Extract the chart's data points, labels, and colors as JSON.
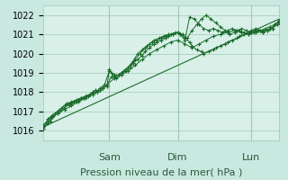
{
  "title": "",
  "xlabel": "Pression niveau de la mer( hPa )",
  "ylabel": "",
  "bg_color": "#c8e8e0",
  "plot_bg_color": "#d8f0e8",
  "grid_color": "#a0c8b8",
  "line_color": "#1a6b2a",
  "marker_color": "#1a6b2a",
  "ylim": [
    1015.5,
    1022.5
  ],
  "yticks": [
    1016,
    1017,
    1018,
    1019,
    1020,
    1021,
    1022
  ],
  "day_labels": [
    "Sam",
    "Dim",
    "Lun"
  ],
  "day_positions": [
    0.28,
    0.57,
    0.88
  ],
  "xlabel_fontsize": 8,
  "tick_fontsize": 7,
  "day_fontsize": 8,
  "series": [
    {
      "x": [
        0.0,
        0.01,
        0.02,
        0.03,
        0.05,
        0.06,
        0.07,
        0.08,
        0.09,
        0.1,
        0.11,
        0.12,
        0.14,
        0.15,
        0.16,
        0.17,
        0.18,
        0.2,
        0.21,
        0.22,
        0.23,
        0.24,
        0.25,
        0.27,
        0.28,
        0.29,
        0.3,
        0.32,
        0.33,
        0.35,
        0.37,
        0.38,
        0.4,
        0.42,
        0.43,
        0.45,
        0.47,
        0.48,
        0.5,
        0.52,
        0.53,
        0.55,
        0.57,
        0.58,
        0.6,
        0.62,
        0.63,
        0.65,
        0.67,
        0.68,
        0.7,
        0.72,
        0.73,
        0.75,
        0.77,
        0.78,
        0.8,
        0.82,
        0.83,
        0.85,
        0.87,
        0.88,
        0.9,
        0.92,
        0.93,
        0.95,
        0.97,
        0.98,
        1.0
      ],
      "y": [
        1016.2,
        1016.4,
        1016.6,
        1016.7,
        1016.9,
        1017.0,
        1017.1,
        1017.2,
        1017.3,
        1017.4,
        1017.3,
        1017.4,
        1017.5,
        1017.6,
        1017.7,
        1017.7,
        1017.8,
        1017.9,
        1018.0,
        1018.1,
        1018.0,
        1018.1,
        1018.2,
        1018.3,
        1019.2,
        1019.0,
        1018.8,
        1018.9,
        1019.0,
        1019.1,
        1019.3,
        1019.5,
        1019.7,
        1019.9,
        1020.1,
        1020.3,
        1020.5,
        1020.6,
        1020.7,
        1020.8,
        1020.9,
        1021.0,
        1021.1,
        1021.0,
        1020.8,
        1020.6,
        1020.4,
        1020.2,
        1020.1,
        1020.0,
        1020.1,
        1020.2,
        1020.3,
        1020.4,
        1020.5,
        1020.6,
        1020.7,
        1020.8,
        1020.9,
        1021.0,
        1021.1,
        1021.2,
        1021.3,
        1021.2,
        1021.1,
        1021.2,
        1021.3,
        1021.5,
        1021.7
      ],
      "smooth": false
    },
    {
      "x": [
        0.0,
        0.02,
        0.04,
        0.06,
        0.08,
        0.1,
        0.12,
        0.14,
        0.16,
        0.18,
        0.2,
        0.22,
        0.24,
        0.26,
        0.28,
        0.3,
        0.32,
        0.34,
        0.36,
        0.38,
        0.4,
        0.42,
        0.44,
        0.46,
        0.48,
        0.5,
        0.52,
        0.54,
        0.56,
        0.58,
        0.6,
        0.62,
        0.64,
        0.66,
        0.68,
        0.7,
        0.72,
        0.74,
        0.76,
        0.78,
        0.8,
        0.82,
        0.84,
        0.86,
        0.88,
        0.9,
        0.92,
        0.94,
        0.96,
        0.98,
        1.0
      ],
      "y": [
        1016.3,
        1016.5,
        1016.8,
        1017.0,
        1017.2,
        1017.4,
        1017.5,
        1017.6,
        1017.7,
        1017.8,
        1017.9,
        1018.0,
        1018.2,
        1018.4,
        1019.1,
        1018.9,
        1018.9,
        1019.1,
        1019.3,
        1019.6,
        1020.0,
        1020.2,
        1020.4,
        1020.6,
        1020.7,
        1020.8,
        1020.9,
        1021.0,
        1021.1,
        1021.0,
        1020.7,
        1021.9,
        1021.8,
        1021.5,
        1021.3,
        1021.2,
        1021.3,
        1021.2,
        1021.1,
        1021.2,
        1021.3,
        1021.2,
        1021.3,
        1021.2,
        1021.1,
        1021.2,
        1021.2,
        1021.3,
        1021.4,
        1021.5,
        1021.7
      ],
      "smooth": false
    },
    {
      "x": [
        0.0,
        0.02,
        0.04,
        0.07,
        0.09,
        0.11,
        0.13,
        0.15,
        0.17,
        0.19,
        0.21,
        0.23,
        0.25,
        0.27,
        0.29,
        0.31,
        0.33,
        0.35,
        0.37,
        0.39,
        0.41,
        0.43,
        0.45,
        0.47,
        0.49,
        0.51,
        0.53,
        0.55,
        0.57,
        0.59,
        0.61,
        0.63,
        0.65,
        0.67,
        0.69,
        0.71,
        0.73,
        0.75,
        0.77,
        0.79,
        0.81,
        0.83,
        0.85,
        0.87,
        0.89,
        0.91,
        0.93,
        0.95,
        0.97,
        0.99,
        1.0
      ],
      "y": [
        1016.1,
        1016.4,
        1016.7,
        1017.0,
        1017.2,
        1017.4,
        1017.5,
        1017.6,
        1017.7,
        1017.8,
        1017.9,
        1018.0,
        1018.2,
        1018.4,
        1018.8,
        1018.7,
        1018.9,
        1019.2,
        1019.4,
        1019.7,
        1020.0,
        1020.3,
        1020.5,
        1020.7,
        1020.8,
        1020.9,
        1021.0,
        1021.0,
        1021.1,
        1021.0,
        1020.8,
        1021.2,
        1021.5,
        1021.8,
        1022.0,
        1021.8,
        1021.6,
        1021.4,
        1021.2,
        1021.0,
        1021.1,
        1021.2,
        1021.1,
        1021.0,
        1021.1,
        1021.2,
        1021.1,
        1021.2,
        1021.3,
        1021.5,
        1021.7
      ],
      "smooth": false
    },
    {
      "x": [
        0.0,
        0.03,
        0.06,
        0.09,
        0.12,
        0.15,
        0.18,
        0.21,
        0.24,
        0.27,
        0.3,
        0.33,
        0.36,
        0.39,
        0.42,
        0.45,
        0.48,
        0.51,
        0.54,
        0.57,
        0.6,
        0.63,
        0.66,
        0.69,
        0.72,
        0.75,
        0.78,
        0.81,
        0.84,
        0.87,
        0.9,
        0.93,
        0.96,
        0.99,
        1.0
      ],
      "y": [
        1016.1,
        1016.5,
        1016.9,
        1017.1,
        1017.3,
        1017.5,
        1017.7,
        1017.9,
        1018.1,
        1018.4,
        1018.7,
        1018.9,
        1019.1,
        1019.4,
        1019.7,
        1020.0,
        1020.2,
        1020.4,
        1020.6,
        1020.7,
        1020.5,
        1020.3,
        1020.5,
        1020.7,
        1020.9,
        1021.0,
        1021.1,
        1021.2,
        1021.1,
        1021.0,
        1021.1,
        1021.2,
        1021.3,
        1021.5,
        1021.6
      ],
      "smooth": false
    },
    {
      "x": [
        0.0,
        1.0
      ],
      "y": [
        1016.2,
        1021.8
      ],
      "smooth": true
    }
  ]
}
